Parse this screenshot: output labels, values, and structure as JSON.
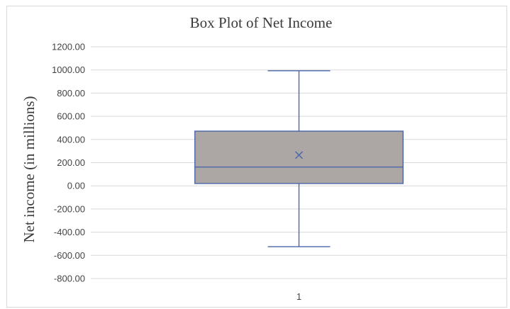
{
  "chart_data": {
    "type": "box",
    "title": "Box Plot of Net Income",
    "xlabel": "",
    "ylabel": "Net income (in millions)",
    "ylim": [
      -800,
      1200
    ],
    "yticks": [
      1200,
      1000,
      800,
      600,
      400,
      200,
      0,
      -200,
      -400,
      -600,
      -800
    ],
    "ytick_labels": [
      "1200.00",
      "1000.00",
      "800.00",
      "600.00",
      "400.00",
      "200.00",
      "0.00",
      "-200.00",
      "-400.00",
      "-600.00",
      "-800.00"
    ],
    "categories": [
      "1"
    ],
    "boxes": [
      {
        "category": "1",
        "whisker_low": -525,
        "q1": 20,
        "median": 162,
        "q3": 472,
        "whisker_high": 993,
        "mean": 265
      }
    ],
    "grid": true,
    "colors": {
      "box_fill": "#aca6a4",
      "box_stroke": "#4a66a8",
      "grid": "#d9d9d9"
    }
  }
}
